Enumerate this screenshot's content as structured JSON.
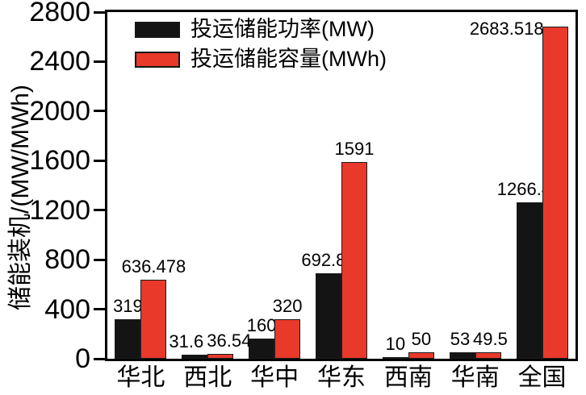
{
  "chart_data": {
    "type": "bar",
    "title": "",
    "ylabel": "储能装机/(MW/MWh)",
    "xlabel": "",
    "categories": [
      "华北",
      "西北",
      "华中",
      "华东",
      "西南",
      "华南",
      "全国"
    ],
    "series": [
      {
        "name": "投运储能功率(MW)",
        "color": "#141414",
        "values": [
          319,
          31.6,
          160,
          692.83,
          10,
          53,
          1266.43
        ],
        "labels": [
          "319",
          "31.6",
          "160",
          "692.83",
          "10",
          "53",
          "1266.43"
        ]
      },
      {
        "name": "投运储能容量(MWh)",
        "color": "#e8392b",
        "values": [
          636.478,
          36.54,
          320,
          1591,
          50,
          49.5,
          2683.518
        ],
        "labels": [
          "636.478",
          "36.54",
          "320",
          "1591",
          "50",
          "49.5",
          "2683.518"
        ]
      }
    ],
    "ylim": [
      0,
      2800
    ],
    "yticks": [
      0,
      400,
      800,
      1200,
      1600,
      2000,
      2400,
      2800
    ],
    "legend_position": "top-left-inside",
    "grid": false,
    "bar_value_labels": true
  }
}
